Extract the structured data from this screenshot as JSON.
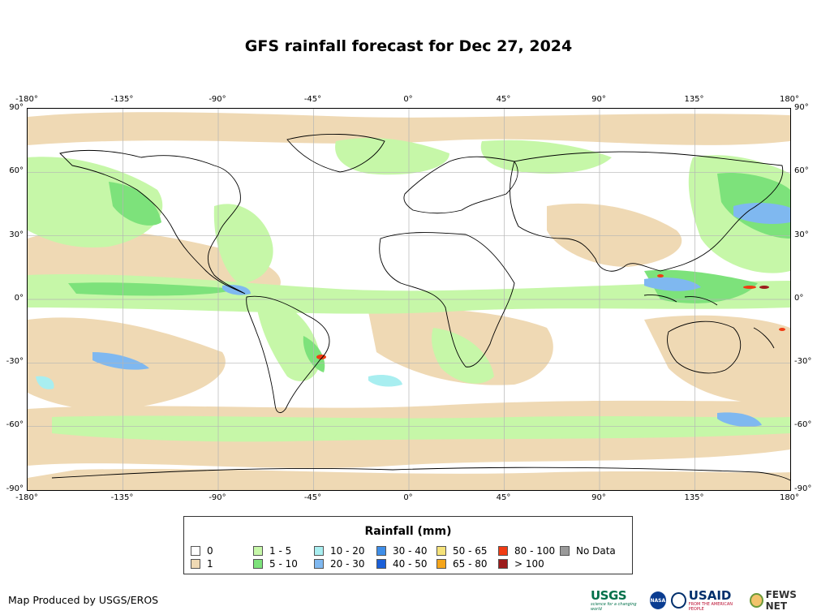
{
  "title": "GFS rainfall forecast for Dec 27, 2024",
  "map": {
    "lon_ticks": [
      "-180°",
      "-135°",
      "-90°",
      "-45°",
      "0°",
      "45°",
      "90°",
      "135°",
      "180°"
    ],
    "lat_ticks": [
      "90°",
      "60°",
      "30°",
      "0°",
      "-30°",
      "-60°",
      "-90°"
    ],
    "lon_range": [
      -180,
      180
    ],
    "lat_range": [
      -90,
      90
    ],
    "projection": "Equirectangular"
  },
  "legend": {
    "title": "Rainfall (mm)",
    "items": [
      {
        "label": "0",
        "color": "#ffffff"
      },
      {
        "label": "1",
        "color": "#efd9b4"
      },
      {
        "label": "1 - 5",
        "color": "#c6f7a8"
      },
      {
        "label": "5 - 10",
        "color": "#7de27b"
      },
      {
        "label": "10 - 20",
        "color": "#a8eef0"
      },
      {
        "label": "20 - 30",
        "color": "#7fb8f0"
      },
      {
        "label": "30 - 40",
        "color": "#3f8ee8"
      },
      {
        "label": "40 - 50",
        "color": "#1a5fd8"
      },
      {
        "label": "50 - 65",
        "color": "#f5e27a"
      },
      {
        "label": "65 - 80",
        "color": "#f5a51a"
      },
      {
        "label": "80 - 100",
        "color": "#f03c14"
      },
      {
        "label": "> 100",
        "color": "#9c1c1c"
      },
      {
        "label": "No Data",
        "color": "#9a9a9a"
      }
    ]
  },
  "credit": "Map Produced by USGS/EROS",
  "logos": {
    "usgs": "USGS",
    "usgs_tagline": "science for a changing world",
    "nasa": "NASA",
    "usaid": "USAID",
    "usaid_tagline": "FROM THE AMERICAN PEOPLE",
    "fews": "FEWS NET"
  }
}
